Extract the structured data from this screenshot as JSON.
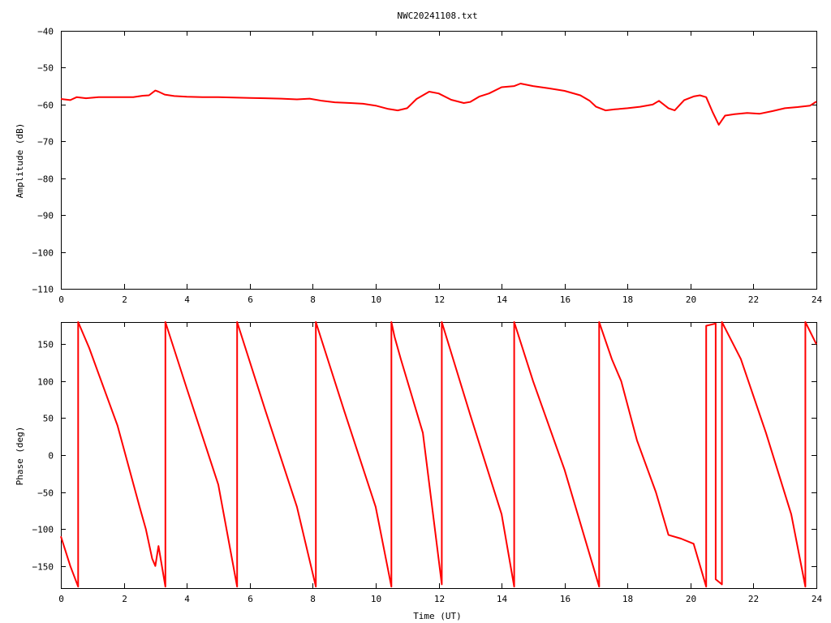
{
  "title": "NWC20241108.txt",
  "trace_color": "#ff0000",
  "chart_data": [
    {
      "type": "line",
      "title": "NWC20241108.txt",
      "xlabel": "",
      "ylabel": "Amplitude (dB)",
      "xlim": [
        0,
        24
      ],
      "ylim": [
        -110,
        -40
      ],
      "xticks": [
        "0",
        "2",
        "4",
        "6",
        "8",
        "10",
        "12",
        "14",
        "16",
        "18",
        "20",
        "22",
        "24"
      ],
      "yticks": [
        "−40",
        "−50",
        "−60",
        "−70",
        "−80",
        "−90",
        "−100",
        "−110"
      ],
      "grid": false,
      "series": [
        {
          "x": [
            0,
            0.3,
            0.5,
            0.8,
            1.2,
            1.6,
            2.0,
            2.3,
            2.6,
            2.8,
            3.0,
            3.1,
            3.3,
            3.6,
            4.0,
            4.5,
            5.0,
            5.5,
            6.0,
            6.5,
            7.0,
            7.5,
            7.9,
            8.3,
            8.7,
            9.2,
            9.6,
            10.0,
            10.4,
            10.7,
            11.0,
            11.3,
            11.7,
            12.0,
            12.4,
            12.8,
            13.0,
            13.3,
            13.6,
            14.0,
            14.4,
            14.6,
            15.0,
            15.5,
            16.0,
            16.5,
            16.8,
            17.0,
            17.3,
            17.6,
            18.0,
            18.4,
            18.8,
            19.0,
            19.3,
            19.5,
            19.8,
            20.1,
            20.3,
            20.5,
            20.7,
            20.9,
            21.1,
            21.4,
            21.8,
            22.2,
            22.6,
            23.0,
            23.4,
            23.8,
            24.0
          ],
          "y": [
            -58.5,
            -58.8,
            -58.0,
            -58.3,
            -58.0,
            -58.0,
            -58.0,
            -58.0,
            -57.6,
            -57.5,
            -56.2,
            -56.5,
            -57.3,
            -57.7,
            -57.9,
            -58.0,
            -58.0,
            -58.1,
            -58.2,
            -58.3,
            -58.4,
            -58.6,
            -58.4,
            -59.0,
            -59.4,
            -59.6,
            -59.8,
            -60.3,
            -61.2,
            -61.6,
            -61.0,
            -58.5,
            -56.5,
            -57.0,
            -58.7,
            -59.6,
            -59.3,
            -57.8,
            -57.0,
            -55.3,
            -55.0,
            -54.3,
            -55.0,
            -55.6,
            -56.3,
            -57.5,
            -59.0,
            -60.6,
            -61.6,
            -61.3,
            -61.0,
            -60.6,
            -60.0,
            -59.0,
            -61.0,
            -61.6,
            -58.8,
            -57.8,
            -57.5,
            -58.0,
            -62.0,
            -65.5,
            -63.0,
            -62.6,
            -62.3,
            -62.5,
            -61.8,
            -61.0,
            -60.7,
            -60.3,
            -59.2
          ]
        }
      ]
    },
    {
      "type": "line",
      "title": "",
      "xlabel": "Time (UT)",
      "ylabel": "Phase (deg)",
      "xlim": [
        0,
        24
      ],
      "ylim": [
        -180,
        180
      ],
      "xticks": [
        "0",
        "2",
        "4",
        "6",
        "8",
        "10",
        "12",
        "14",
        "16",
        "18",
        "20",
        "22",
        "24"
      ],
      "yticks": [
        "150",
        "100",
        "50",
        "0",
        "−50",
        "−100",
        "−150"
      ],
      "grid": false,
      "series": [
        {
          "x": [
            0,
            0.3,
            0.55,
            0.55,
            0.9,
            1.2,
            1.8,
            2.5,
            2.7,
            2.9,
            3.0,
            3.1,
            3.32,
            3.32,
            4.0,
            5.0,
            5.6,
            5.6,
            6.5,
            7.5,
            8.1,
            8.1,
            9.0,
            10.0,
            10.5,
            10.5,
            10.6,
            10.8,
            11.5,
            12.1,
            12.1,
            13.0,
            14.0,
            14.4,
            14.4,
            15.0,
            16.0,
            17.1,
            17.1,
            17.5,
            17.8,
            18.3,
            18.9,
            19.3,
            19.7,
            20.1,
            20.5,
            20.5,
            20.8,
            20.8,
            21.0,
            21.0,
            21.6,
            22.4,
            23.2,
            23.65,
            23.65,
            24.0
          ],
          "y": [
            -110,
            -150,
            -178,
            180,
            145,
            110,
            40,
            -70,
            -100,
            -140,
            -150,
            -123,
            -178,
            180,
            90,
            -40,
            -178,
            180,
            60,
            -70,
            -178,
            180,
            60,
            -70,
            -178,
            180,
            160,
            130,
            30,
            -175,
            180,
            55,
            -80,
            -178,
            180,
            100,
            -20,
            -178,
            180,
            130,
            100,
            20,
            -50,
            -108,
            -113,
            -120,
            -178,
            175,
            178,
            -168,
            -175,
            180,
            130,
            30,
            -80,
            -178,
            180,
            150
          ]
        }
      ]
    }
  ]
}
